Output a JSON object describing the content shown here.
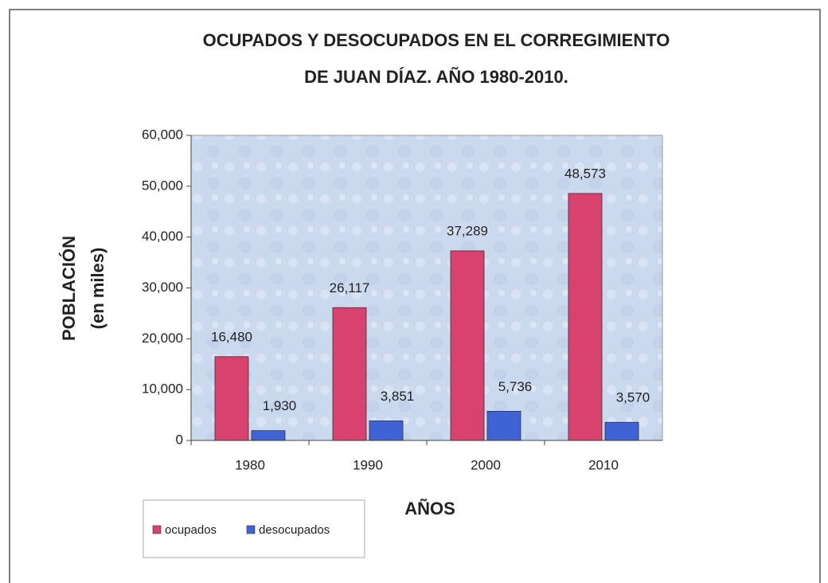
{
  "chart_data": {
    "type": "bar",
    "title": [
      "OCUPADOS Y DESOCUPADOS EN EL CORREGIMIENTO",
      "DE JUAN DÍAZ. AÑO 1980-2010."
    ],
    "y_label": [
      "POBLACIÓN",
      "(en miles)"
    ],
    "x_label": "AÑOS",
    "categories": [
      "1980",
      "1990",
      "2000",
      "2010"
    ],
    "series": [
      {
        "name": "ocupados",
        "color": "#d9416f",
        "values": [
          16480,
          26117,
          37289,
          48573
        ],
        "value_labels": [
          "16,480",
          "26,117",
          "37,289",
          "48,573"
        ]
      },
      {
        "name": "desocupados",
        "color": "#3f63d4",
        "values": [
          1930,
          3851,
          5736,
          3570
        ],
        "value_labels": [
          "1,930",
          "3,851",
          "5,736",
          "3,570"
        ]
      }
    ],
    "ylim": [
      0,
      60000
    ],
    "yticks": [
      0,
      {
        "value": 10000,
        "label": "10,000"
      },
      {
        "value": 20000,
        "label": "20,000"
      },
      {
        "value": 30000,
        "label": "30,000"
      },
      {
        "value": 40000,
        "label": "40,000"
      },
      {
        "value": 50000,
        "label": "50,000"
      },
      {
        "value": 60000,
        "label": "60,000"
      }
    ],
    "legend": "bottom-left"
  }
}
